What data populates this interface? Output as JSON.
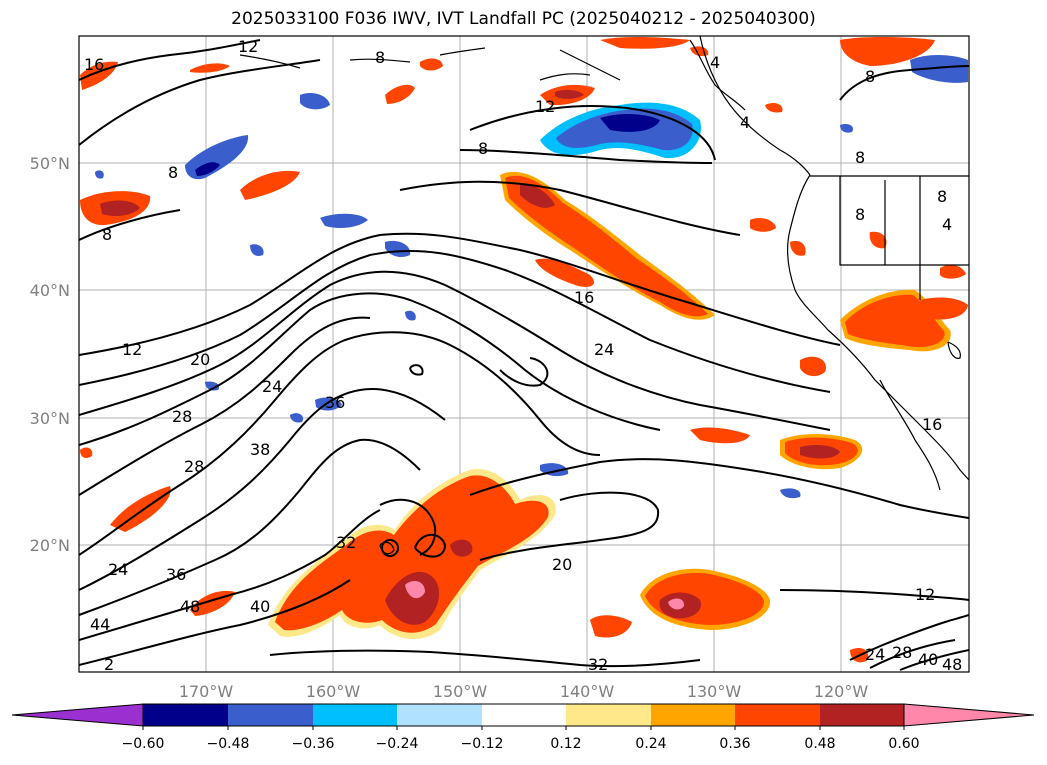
{
  "title": "2025033100 F036 IWV, IVT Landfall PC (2025040212 - 2025040300)",
  "map": {
    "lat_labels": [
      "50°N",
      "40°N",
      "30°N",
      "20°N"
    ],
    "lon_labels": [
      "170°W",
      "160°W",
      "150°W",
      "140°W",
      "130°W",
      "120°W"
    ],
    "contour_labels": [
      "16",
      "12",
      "8",
      "8",
      "12",
      "8",
      "4",
      "8",
      "8",
      "8",
      "4",
      "8",
      "4",
      "8",
      "16",
      "12",
      "20",
      "24",
      "24",
      "28",
      "36",
      "38",
      "28",
      "24",
      "36",
      "48",
      "44",
      "40",
      "32",
      "20",
      "32",
      "12",
      "24",
      "28",
      "40",
      "48",
      "16",
      "2"
    ],
    "coast_color": "#000000",
    "grid": true
  },
  "colorbar": {
    "colors": [
      "#9b30d0",
      "#00008b",
      "#3a5fcd",
      "#00bfff",
      "#b0e2ff",
      "#ffffff",
      "#ffe88a",
      "#ffa500",
      "#ff4500",
      "#b22222",
      "#ff88aa"
    ],
    "ticks": [
      "−0.60",
      "−0.48",
      "−0.36",
      "−0.24",
      "−0.12",
      "0.12",
      "0.24",
      "0.36",
      "0.48",
      "0.60"
    ]
  }
}
